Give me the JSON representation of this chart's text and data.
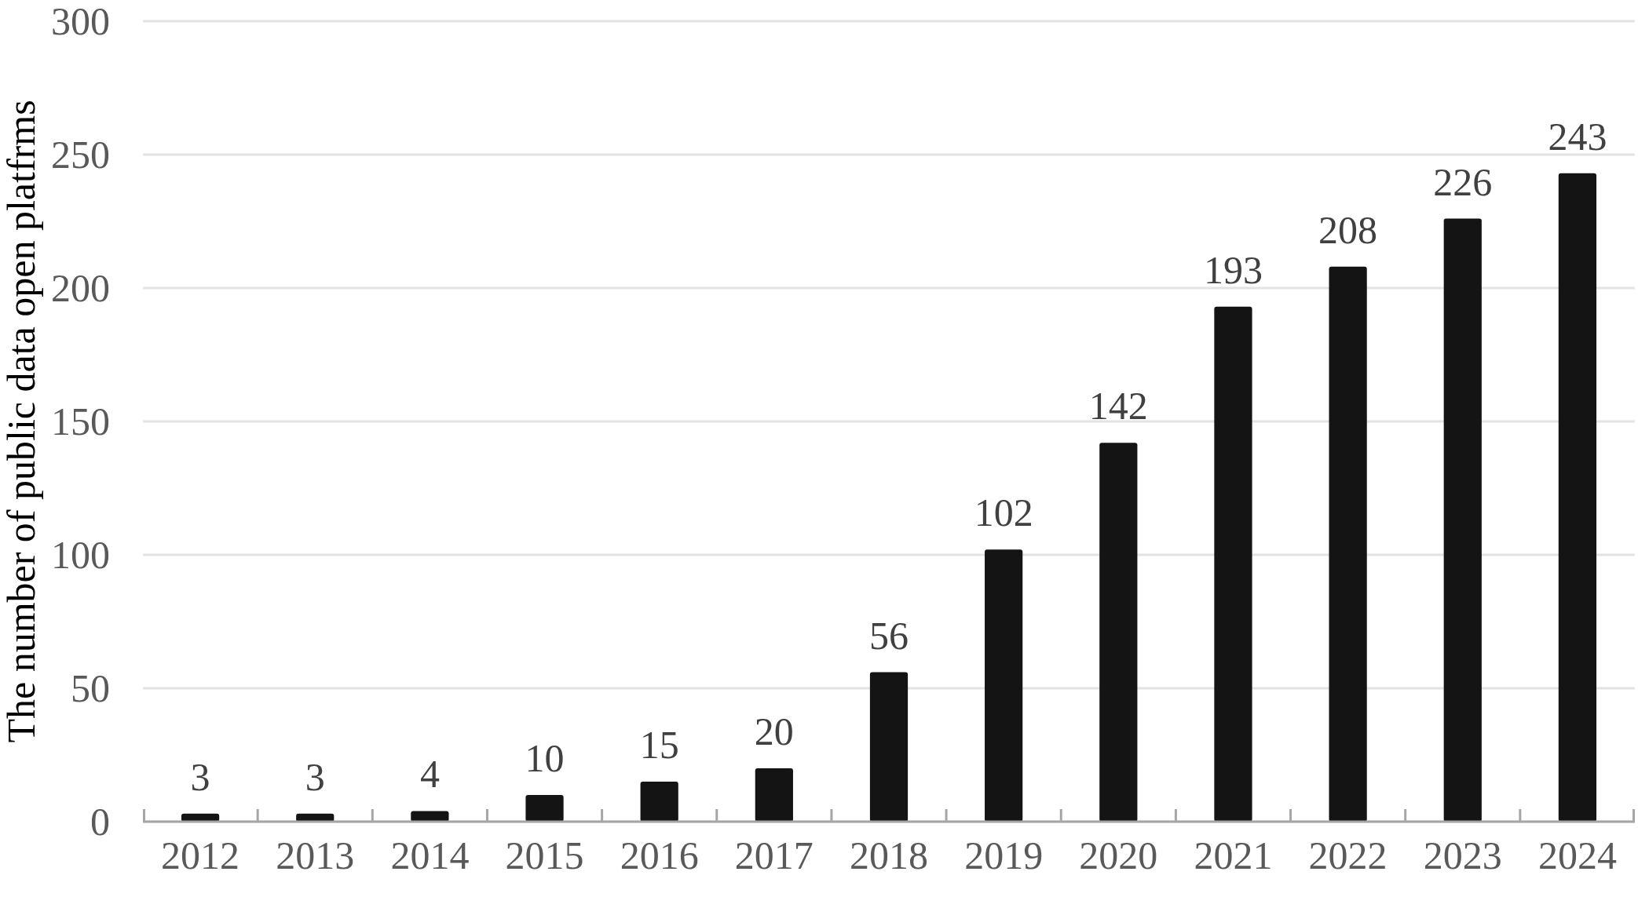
{
  "chart_data": {
    "type": "bar",
    "ylabel": "The number of public data open platfrms",
    "categories": [
      "2012",
      "2013",
      "2014",
      "2015",
      "2016",
      "2017",
      "2018",
      "2019",
      "2020",
      "2021",
      "2022",
      "2023",
      "2024"
    ],
    "values": [
      3,
      3,
      4,
      10,
      15,
      20,
      56,
      102,
      142,
      193,
      208,
      226,
      243
    ],
    "color": "#141414",
    "ylim": [
      0,
      300
    ],
    "yticks": [
      0,
      50,
      100,
      150,
      200,
      250,
      300
    ],
    "grid": "y",
    "data_labels": true
  }
}
